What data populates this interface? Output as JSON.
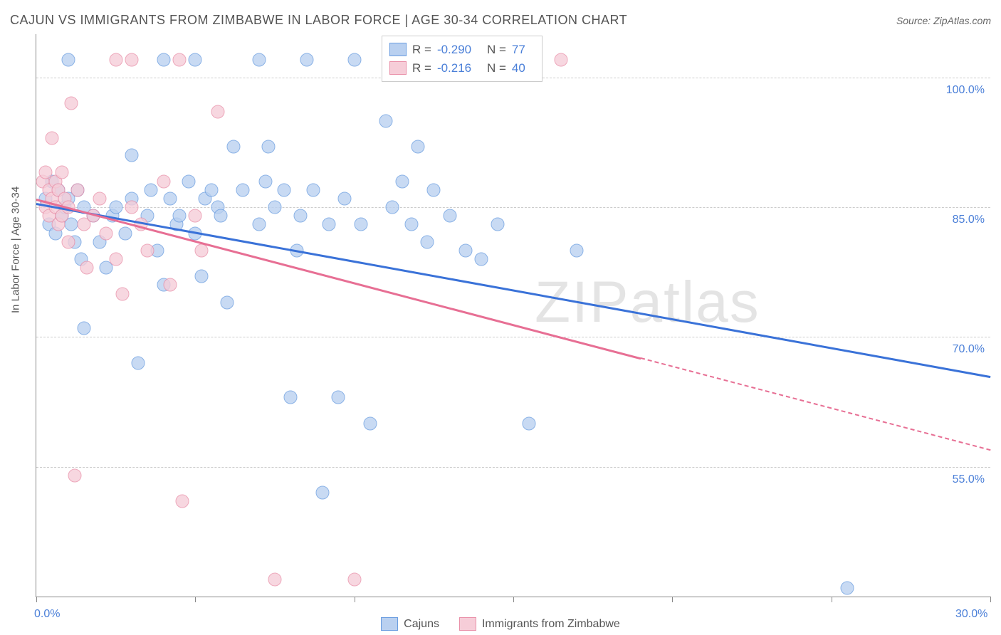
{
  "title": "CAJUN VS IMMIGRANTS FROM ZIMBABWE IN LABOR FORCE | AGE 30-34 CORRELATION CHART",
  "source": "Source: ZipAtlas.com",
  "y_axis_title": "In Labor Force | Age 30-34",
  "watermark": "ZIPatlas",
  "chart": {
    "type": "scatter",
    "background_color": "#ffffff",
    "grid_color": "#cccccc",
    "axis_color": "#888888",
    "tick_label_color": "#4a7fd8",
    "x_range": [
      0,
      30
    ],
    "y_range": [
      40,
      105
    ],
    "y_gridlines": [
      55,
      70,
      85,
      100
    ],
    "y_tick_labels": [
      "55.0%",
      "70.0%",
      "85.0%",
      "100.0%"
    ],
    "x_ticks": [
      0,
      5,
      10,
      15,
      20,
      25,
      30
    ],
    "x_tick_labels": {
      "0": "0.0%",
      "30": "30.0%"
    },
    "series": [
      {
        "name": "Cajuns",
        "key": "cajuns",
        "point_fill": "#b9d0f0",
        "point_stroke": "#6a9de0",
        "line_color": "#3a72d8",
        "R": "-0.290",
        "N": "77",
        "trend": {
          "x1": 0,
          "y1": 85.5,
          "x2": 30,
          "y2": 65.5,
          "solid_to_x": 30
        },
        "points": [
          [
            0.3,
            86
          ],
          [
            0.4,
            83
          ],
          [
            0.5,
            88
          ],
          [
            0.6,
            82
          ],
          [
            0.7,
            87
          ],
          [
            0.8,
            84
          ],
          [
            0.9,
            85
          ],
          [
            1.0,
            102
          ],
          [
            1.0,
            86
          ],
          [
            1.1,
            83
          ],
          [
            1.2,
            81
          ],
          [
            1.3,
            87
          ],
          [
            1.4,
            79
          ],
          [
            1.5,
            85
          ],
          [
            1.5,
            71
          ],
          [
            1.8,
            84
          ],
          [
            2.0,
            81
          ],
          [
            2.2,
            78
          ],
          [
            2.4,
            84
          ],
          [
            2.5,
            85
          ],
          [
            2.8,
            82
          ],
          [
            3.0,
            91
          ],
          [
            3.0,
            86
          ],
          [
            3.2,
            67
          ],
          [
            3.5,
            84
          ],
          [
            3.6,
            87
          ],
          [
            3.8,
            80
          ],
          [
            4.0,
            76
          ],
          [
            4.0,
            102
          ],
          [
            4.2,
            86
          ],
          [
            4.4,
            83
          ],
          [
            4.5,
            84
          ],
          [
            4.8,
            88
          ],
          [
            5.0,
            102
          ],
          [
            5.0,
            82
          ],
          [
            5.2,
            77
          ],
          [
            5.3,
            86
          ],
          [
            5.5,
            87
          ],
          [
            5.7,
            85
          ],
          [
            5.8,
            84
          ],
          [
            6.0,
            74
          ],
          [
            6.2,
            92
          ],
          [
            6.5,
            87
          ],
          [
            7.0,
            102
          ],
          [
            7.0,
            83
          ],
          [
            7.2,
            88
          ],
          [
            7.3,
            92
          ],
          [
            7.5,
            85
          ],
          [
            7.8,
            87
          ],
          [
            8.0,
            63
          ],
          [
            8.2,
            80
          ],
          [
            8.3,
            84
          ],
          [
            8.5,
            102
          ],
          [
            8.7,
            87
          ],
          [
            9.0,
            52
          ],
          [
            9.2,
            83
          ],
          [
            9.5,
            63
          ],
          [
            9.7,
            86
          ],
          [
            10.0,
            102
          ],
          [
            10.2,
            83
          ],
          [
            10.5,
            60
          ],
          [
            11.0,
            95
          ],
          [
            11.2,
            85
          ],
          [
            11.5,
            88
          ],
          [
            11.8,
            83
          ],
          [
            12.0,
            92
          ],
          [
            12.3,
            81
          ],
          [
            12.5,
            87
          ],
          [
            13.0,
            84
          ],
          [
            13.5,
            80
          ],
          [
            14.0,
            79
          ],
          [
            14.5,
            83
          ],
          [
            15.5,
            60
          ],
          [
            17.0,
            80
          ],
          [
            25.5,
            41
          ]
        ]
      },
      {
        "name": "Immigrants from Zimbabwe",
        "key": "zimbabwe",
        "point_fill": "#f6cdd8",
        "point_stroke": "#e98fa8",
        "line_color": "#e76f94",
        "R": "-0.216",
        "N": "40",
        "trend": {
          "x1": 0,
          "y1": 86,
          "x2": 30,
          "y2": 57,
          "solid_to_x": 19
        },
        "points": [
          [
            0.2,
            88
          ],
          [
            0.3,
            89
          ],
          [
            0.3,
            85
          ],
          [
            0.4,
            87
          ],
          [
            0.4,
            84
          ],
          [
            0.5,
            93
          ],
          [
            0.5,
            86
          ],
          [
            0.6,
            88
          ],
          [
            0.6,
            85
          ],
          [
            0.7,
            87
          ],
          [
            0.7,
            83
          ],
          [
            0.8,
            89
          ],
          [
            0.8,
            84
          ],
          [
            0.9,
            86
          ],
          [
            1.0,
            85
          ],
          [
            1.0,
            81
          ],
          [
            1.1,
            97
          ],
          [
            1.2,
            54
          ],
          [
            1.3,
            87
          ],
          [
            1.5,
            83
          ],
          [
            1.6,
            78
          ],
          [
            1.8,
            84
          ],
          [
            2.0,
            86
          ],
          [
            2.2,
            82
          ],
          [
            2.5,
            102
          ],
          [
            2.5,
            79
          ],
          [
            2.7,
            75
          ],
          [
            3.0,
            102
          ],
          [
            3.0,
            85
          ],
          [
            3.3,
            83
          ],
          [
            3.5,
            80
          ],
          [
            4.0,
            88
          ],
          [
            4.2,
            76
          ],
          [
            4.5,
            102
          ],
          [
            4.6,
            51
          ],
          [
            5.0,
            84
          ],
          [
            5.2,
            80
          ],
          [
            5.7,
            96
          ],
          [
            7.5,
            42
          ],
          [
            10.0,
            42
          ],
          [
            16.5,
            102
          ]
        ]
      }
    ]
  },
  "legend": [
    {
      "label": "Cajuns",
      "fill": "#b9d0f0",
      "stroke": "#6a9de0"
    },
    {
      "label": "Immigrants from Zimbabwe",
      "fill": "#f6cdd8",
      "stroke": "#e98fa8"
    }
  ]
}
